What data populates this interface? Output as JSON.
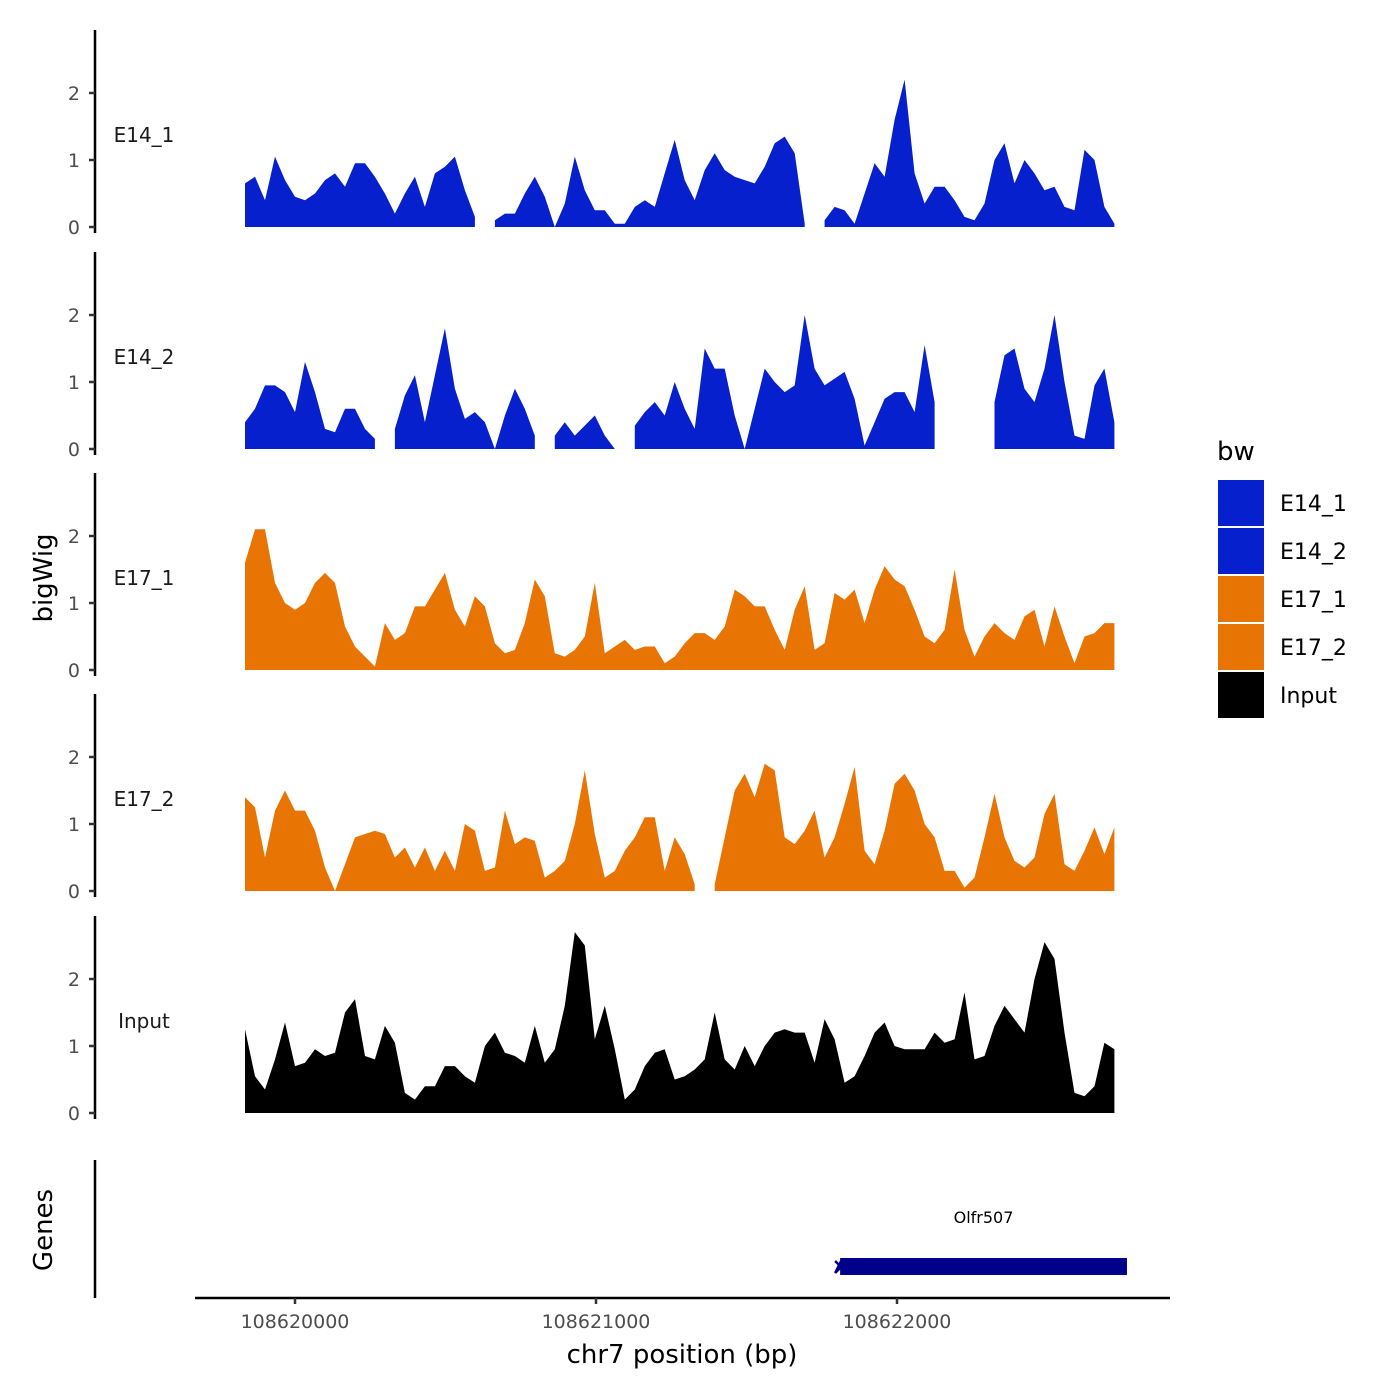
{
  "chart_data": {
    "type": "area",
    "title": "",
    "xlabel": "chr7 position (bp)",
    "ylabel": "bigWig",
    "gene_panel_label": "Genes",
    "xlim": [
      108619670,
      108622910
    ],
    "ylim": [
      0,
      2.9
    ],
    "x_ticks": [
      108620000,
      108621000,
      108622000
    ],
    "x_tick_labels": [
      "108620000",
      "108621000",
      "108622000"
    ],
    "y_ticks": [
      0,
      1,
      2
    ],
    "y_tick_labels": [
      "0",
      "1",
      "2"
    ],
    "grid": false,
    "x_start": 108619834,
    "x_step": 33.2,
    "legend": {
      "title": "bw",
      "position": "right",
      "entries": [
        {
          "label": "E14_1",
          "color": "#0520CC"
        },
        {
          "label": "E14_2",
          "color": "#0520CC"
        },
        {
          "label": "E17_1",
          "color": "#E87503"
        },
        {
          "label": "E17_2",
          "color": "#E87503"
        },
        {
          "label": "Input",
          "color": "#000000"
        }
      ]
    },
    "series": [
      {
        "name": "E14_1",
        "color": "#0520CC",
        "values": [
          0.65,
          0.75,
          0.4,
          1.05,
          0.7,
          0.45,
          0.4,
          0.5,
          0.7,
          0.8,
          0.6,
          0.95,
          0.95,
          0.75,
          0.5,
          0.2,
          0.5,
          0.75,
          0.3,
          0.8,
          0.9,
          1.05,
          0.55,
          0.15,
          null,
          0.1,
          0.2,
          0.2,
          0.5,
          0.75,
          0.45,
          0,
          0.35,
          1.05,
          0.55,
          0.25,
          0.25,
          0.05,
          0.05,
          0.3,
          0.4,
          0.3,
          0.8,
          1.3,
          0.7,
          0.4,
          0.85,
          1.1,
          0.85,
          0.75,
          0.7,
          0.65,
          0.9,
          1.25,
          1.35,
          1.1,
          0.05,
          null,
          0.1,
          0.3,
          0.25,
          0.05,
          0.5,
          0.95,
          0.75,
          1.6,
          2.2,
          0.8,
          0.35,
          0.6,
          0.6,
          0.4,
          0.15,
          0.1,
          0.35,
          1.0,
          1.25,
          0.65,
          1.0,
          0.8,
          0.55,
          0.6,
          0.3,
          0.25,
          1.15,
          1.0,
          0.3,
          0.05
        ]
      },
      {
        "name": "E14_2",
        "color": "#0520CC",
        "values": [
          0.4,
          0.6,
          0.95,
          0.95,
          0.85,
          0.55,
          1.3,
          0.85,
          0.3,
          0.25,
          0.6,
          0.6,
          0.3,
          0.15,
          null,
          0.3,
          0.8,
          1.1,
          0.4,
          1.1,
          1.8,
          0.9,
          0.45,
          0.55,
          0.4,
          0,
          0.5,
          0.9,
          0.6,
          0.2,
          null,
          0.2,
          0.4,
          0.2,
          0.35,
          0.5,
          0.2,
          0,
          null,
          0.35,
          0.55,
          0.7,
          0.5,
          1.0,
          0.6,
          0.3,
          1.5,
          1.2,
          1.2,
          0.5,
          0,
          0.6,
          1.2,
          1.0,
          0.85,
          0.95,
          2.0,
          1.2,
          0.95,
          1.05,
          1.15,
          0.75,
          0.05,
          0.4,
          0.75,
          0.85,
          0.85,
          0.55,
          1.55,
          0.7,
          null,
          null,
          null,
          null,
          null,
          0.7,
          1.4,
          1.5,
          0.9,
          0.7,
          1.2,
          2.0,
          1.0,
          0.2,
          0.15,
          0.95,
          1.2,
          0.4
        ]
      },
      {
        "name": "E17_1",
        "color": "#E87503",
        "values": [
          1.6,
          2.1,
          2.1,
          1.3,
          1.0,
          0.9,
          1.0,
          1.3,
          1.45,
          1.3,
          0.65,
          0.35,
          0.2,
          0.05,
          0.7,
          0.45,
          0.55,
          0.95,
          0.95,
          1.2,
          1.45,
          0.9,
          0.65,
          1.1,
          0.95,
          0.4,
          0.25,
          0.3,
          0.7,
          1.35,
          1.1,
          0.25,
          0.2,
          0.3,
          0.5,
          1.3,
          0.25,
          0.35,
          0.45,
          0.3,
          0.35,
          0.35,
          0.1,
          0.2,
          0.4,
          0.55,
          0.55,
          0.45,
          0.65,
          1.2,
          1.1,
          0.95,
          0.95,
          0.6,
          0.3,
          0.9,
          1.25,
          0.3,
          0.4,
          1.15,
          1.05,
          1.2,
          0.7,
          1.2,
          1.55,
          1.35,
          1.25,
          0.9,
          0.5,
          0.4,
          0.6,
          1.5,
          0.6,
          0.2,
          0.5,
          0.7,
          0.55,
          0.45,
          0.8,
          0.9,
          0.35,
          0.95,
          0.5,
          0.1,
          0.5,
          0.55,
          0.7,
          0.7
        ]
      },
      {
        "name": "E17_2",
        "color": "#E87503",
        "values": [
          1.4,
          1.25,
          0.5,
          1.2,
          1.5,
          1.2,
          1.2,
          0.9,
          0.35,
          0,
          0.4,
          0.8,
          0.85,
          0.9,
          0.85,
          0.5,
          0.65,
          0.35,
          0.65,
          0.3,
          0.6,
          0.3,
          1.0,
          0.9,
          0.3,
          0.35,
          1.2,
          0.7,
          0.8,
          0.75,
          0.2,
          0.3,
          0.45,
          1.0,
          1.8,
          0.85,
          0.2,
          0.3,
          0.6,
          0.8,
          1.1,
          1.1,
          0.3,
          0.8,
          0.55,
          0.1,
          null,
          0.1,
          0.8,
          1.5,
          1.75,
          1.4,
          1.9,
          1.8,
          0.8,
          0.7,
          0.9,
          1.2,
          0.5,
          0.8,
          1.3,
          1.85,
          0.6,
          0.4,
          0.9,
          1.6,
          1.75,
          1.5,
          1.0,
          0.8,
          0.3,
          0.3,
          0.05,
          0.2,
          0.8,
          1.45,
          0.8,
          0.45,
          0.35,
          0.5,
          1.15,
          1.45,
          0.4,
          0.3,
          0.6,
          0.95,
          0.55,
          0.95
        ]
      },
      {
        "name": "Input",
        "color": "#000000",
        "values": [
          1.25,
          0.55,
          0.35,
          0.8,
          1.35,
          0.7,
          0.75,
          0.95,
          0.85,
          0.9,
          1.5,
          1.7,
          0.85,
          0.8,
          1.3,
          1.05,
          0.3,
          0.2,
          0.4,
          0.4,
          0.7,
          0.7,
          0.55,
          0.45,
          1.0,
          1.2,
          0.9,
          0.85,
          0.75,
          1.3,
          0.75,
          0.95,
          1.6,
          2.7,
          2.5,
          1.1,
          1.6,
          0.95,
          0.2,
          0.35,
          0.7,
          0.9,
          0.95,
          0.5,
          0.55,
          0.65,
          0.8,
          1.5,
          0.8,
          0.65,
          1.0,
          0.7,
          1.0,
          1.2,
          1.25,
          1.2,
          1.2,
          0.75,
          1.4,
          1.1,
          0.45,
          0.55,
          0.85,
          1.2,
          1.35,
          1.0,
          0.95,
          0.95,
          0.95,
          1.2,
          1.05,
          1.1,
          1.8,
          0.8,
          0.85,
          1.3,
          1.6,
          1.4,
          1.2,
          2.0,
          2.55,
          2.3,
          1.2,
          0.3,
          0.25,
          0.4,
          1.05,
          0.95
        ]
      }
    ],
    "genes": [
      {
        "name": "Olfr507",
        "start": 108621811,
        "end": 108622764,
        "strand": "+",
        "color": "#00008B"
      }
    ]
  }
}
